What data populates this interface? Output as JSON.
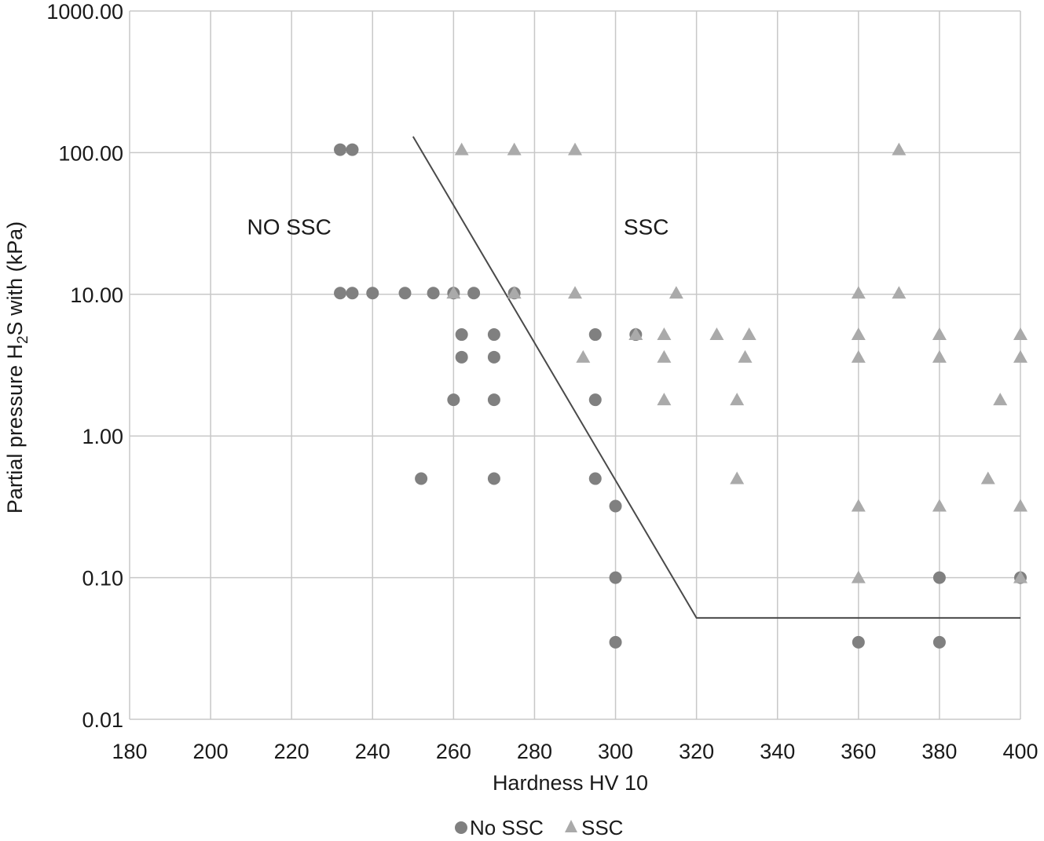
{
  "chart_data": {
    "type": "scatter",
    "xlabel": "Hardness HV 10",
    "ylabel_parts": {
      "main": "Partial pressure H",
      "sub": "2",
      "rest": "S with (kPa)"
    },
    "xlim": [
      180,
      400
    ],
    "ylim": [
      0.01,
      1000
    ],
    "y_scale": "log",
    "x_ticks": [
      "180",
      "200",
      "220",
      "240",
      "260",
      "280",
      "300",
      "320",
      "340",
      "360",
      "380",
      "400"
    ],
    "y_ticks": [
      "0.01",
      "0.10",
      "1.00",
      "10.00",
      "100.00",
      "1000.00"
    ],
    "grid": true,
    "legend_position": "bottom",
    "colors": {
      "no_ssc": "#808080",
      "ssc": "#aaaaaa",
      "grid": "#c8c8c8",
      "line": "#4a4a4a"
    },
    "annotations": [
      {
        "text": "NO SSC",
        "x": 209,
        "y": 30
      },
      {
        "text": "SSC",
        "x": 302,
        "y": 30
      }
    ],
    "series": [
      {
        "name": "No SSC",
        "marker": "circle",
        "points": [
          [
            232,
            105
          ],
          [
            235,
            105
          ],
          [
            232,
            10.2
          ],
          [
            235,
            10.2
          ],
          [
            240,
            10.2
          ],
          [
            248,
            10.2
          ],
          [
            255,
            10.2
          ],
          [
            260,
            10.2
          ],
          [
            265,
            10.2
          ],
          [
            275,
            10.2
          ],
          [
            262,
            5.2
          ],
          [
            270,
            5.2
          ],
          [
            295,
            5.2
          ],
          [
            305,
            5.2
          ],
          [
            262,
            3.6
          ],
          [
            270,
            3.6
          ],
          [
            260,
            1.8
          ],
          [
            270,
            1.8
          ],
          [
            295,
            1.8
          ],
          [
            252,
            0.5
          ],
          [
            270,
            0.5
          ],
          [
            295,
            0.5
          ],
          [
            300,
            0.32
          ],
          [
            300,
            0.1
          ],
          [
            380,
            0.1
          ],
          [
            400,
            0.1
          ],
          [
            300,
            0.035
          ],
          [
            360,
            0.035
          ],
          [
            380,
            0.035
          ]
        ]
      },
      {
        "name": "SSC",
        "marker": "triangle",
        "points": [
          [
            262,
            105
          ],
          [
            275,
            105
          ],
          [
            290,
            105
          ],
          [
            370,
            105
          ],
          [
            260,
            10.2
          ],
          [
            275,
            10.2
          ],
          [
            290,
            10.2
          ],
          [
            315,
            10.2
          ],
          [
            360,
            10.2
          ],
          [
            370,
            10.2
          ],
          [
            305,
            5.2
          ],
          [
            312,
            5.2
          ],
          [
            325,
            5.2
          ],
          [
            333,
            5.2
          ],
          [
            360,
            5.2
          ],
          [
            380,
            5.2
          ],
          [
            400,
            5.2
          ],
          [
            292,
            3.6
          ],
          [
            312,
            3.6
          ],
          [
            332,
            3.6
          ],
          [
            360,
            3.6
          ],
          [
            380,
            3.6
          ],
          [
            400,
            3.6
          ],
          [
            312,
            1.8
          ],
          [
            330,
            1.8
          ],
          [
            395,
            1.8
          ],
          [
            330,
            0.5
          ],
          [
            392,
            0.5
          ],
          [
            360,
            0.32
          ],
          [
            380,
            0.32
          ],
          [
            400,
            0.32
          ],
          [
            360,
            0.1
          ],
          [
            400,
            0.1
          ]
        ]
      }
    ],
    "boundary_line": [
      [
        250,
        130
      ],
      [
        320,
        0.052
      ],
      [
        400,
        0.052
      ]
    ]
  },
  "legend": {
    "no_ssc_label": "No SSC",
    "ssc_label": "SSC"
  }
}
